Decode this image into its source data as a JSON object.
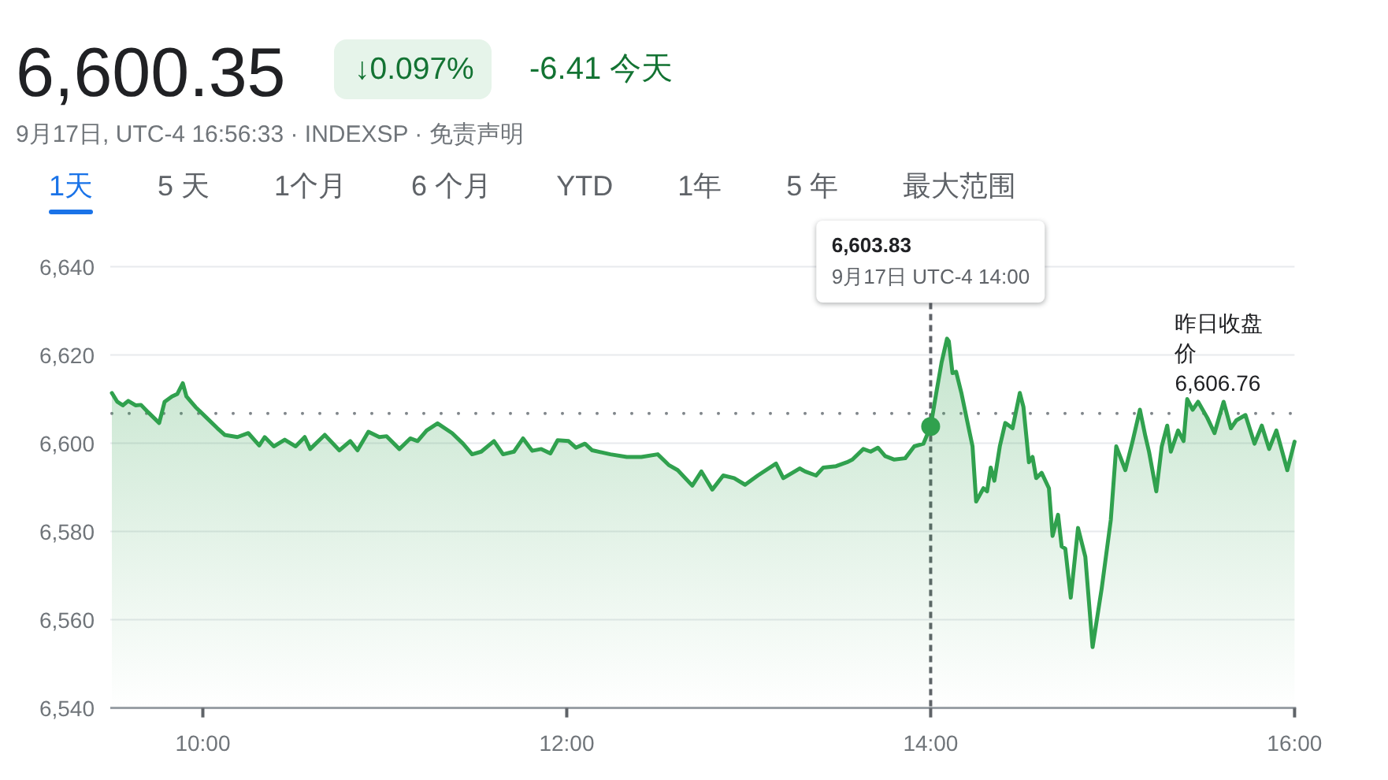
{
  "chart_data": {
    "type": "area",
    "title": "6,600.35",
    "subtitle": "9月17日, UTC-4 16:56:33 · INDEXSP · 免责声明",
    "xlim": [
      9.5,
      16
    ],
    "xticks": [
      {
        "value": 10,
        "label": "10:00"
      },
      {
        "value": 12,
        "label": "12:00"
      },
      {
        "value": 14,
        "label": "14:00"
      },
      {
        "value": 16,
        "label": "16:00"
      }
    ],
    "ylim": [
      6540,
      6640
    ],
    "yticks": [
      {
        "value": 6540,
        "label": "6,540"
      },
      {
        "value": 6560,
        "label": "6,560"
      },
      {
        "value": 6580,
        "label": "6,580"
      },
      {
        "value": 6600,
        "label": "6,600"
      },
      {
        "value": 6620,
        "label": "6,620"
      },
      {
        "value": 6640,
        "label": "6,640"
      }
    ],
    "grid": "y",
    "series": [
      {
        "color": "#30a14e",
        "x": [
          9.5,
          9.53,
          9.56,
          9.59,
          9.63,
          9.66,
          9.7,
          9.76,
          9.79,
          9.83,
          9.86,
          9.89,
          9.91,
          9.96,
          10.02,
          10.08,
          10.12,
          10.19,
          10.25,
          10.31,
          10.34,
          10.39,
          10.45,
          10.51,
          10.56,
          10.59,
          10.67,
          10.75,
          10.81,
          10.85,
          10.91,
          10.97,
          11.01,
          11.08,
          11.14,
          11.18,
          11.23,
          11.29,
          11.37,
          11.43,
          11.48,
          11.53,
          11.6,
          11.65,
          11.71,
          11.76,
          11.81,
          11.86,
          11.91,
          11.95,
          12.01,
          12.05,
          12.1,
          12.14,
          12.24,
          12.33,
          12.41,
          12.5,
          12.56,
          12.61,
          12.69,
          12.74,
          12.8,
          12.86,
          12.92,
          12.98,
          13.05,
          13.15,
          13.19,
          13.24,
          13.28,
          13.31,
          13.37,
          13.41,
          13.48,
          13.54,
          13.57,
          13.63,
          13.67,
          13.71,
          13.75,
          13.8,
          13.86,
          13.91,
          13.96,
          14,
          14.03,
          14.06,
          14.09,
          14.1,
          14.12,
          14.14,
          14.17,
          14.2,
          14.23,
          14.25,
          14.29,
          14.31,
          14.33,
          14.35,
          14.38,
          14.41,
          14.45,
          14.49,
          14.51,
          14.54,
          14.56,
          14.58,
          14.61,
          14.65,
          14.67,
          14.7,
          14.72,
          14.74,
          14.77,
          14.81,
          14.85,
          14.89,
          14.94,
          14.99,
          15.02,
          15.07,
          15.11,
          15.15,
          15.18,
          15.2,
          15.24,
          15.27,
          15.3,
          15.32,
          15.36,
          15.39,
          15.41,
          15.44,
          15.47,
          15.52,
          15.56,
          15.61,
          15.65,
          15.68,
          15.73,
          15.78,
          15.82,
          15.86,
          15.9,
          15.96,
          16
        ],
        "values": [
          6611.4,
          6609.4,
          6608.6,
          6609.6,
          6608.6,
          6608.7,
          6607,
          6604.6,
          6609.4,
          6610.6,
          6611.2,
          6613.6,
          6610.6,
          6608.2,
          6605.8,
          6603.4,
          6601.9,
          6601.4,
          6602.3,
          6599.5,
          6601.4,
          6599.3,
          6600.8,
          6599.3,
          6601.4,
          6598.7,
          6601.9,
          6598.4,
          6600.5,
          6598.4,
          6602.6,
          6601.4,
          6601.6,
          6598.7,
          6601.1,
          6600.5,
          6602.9,
          6604.5,
          6602.3,
          6599.9,
          6597.5,
          6598.1,
          6600.5,
          6597.5,
          6598.1,
          6601.1,
          6598.3,
          6598.7,
          6597.7,
          6600.7,
          6600.5,
          6599,
          6599.9,
          6598.4,
          6597.5,
          6596.9,
          6596.9,
          6597.5,
          6595.1,
          6593.9,
          6590.4,
          6593.6,
          6589.5,
          6592.7,
          6592.1,
          6590.6,
          6592.7,
          6595.4,
          6592.1,
          6593.3,
          6594.3,
          6593.6,
          6592.7,
          6594.5,
          6594.8,
          6595.7,
          6596.3,
          6598.7,
          6598.1,
          6599,
          6597.1,
          6596.3,
          6596.6,
          6599.3,
          6599.9,
          6603.83,
          6611.2,
          6618.3,
          6623.7,
          6623.1,
          6615.9,
          6616.2,
          6611.2,
          6605.2,
          6599.3,
          6586.8,
          6589.8,
          6589.1,
          6594.5,
          6591.5,
          6599.3,
          6604.6,
          6603.4,
          6611.4,
          6608.2,
          6595.7,
          6596.9,
          6592.1,
          6593.3,
          6589.8,
          6579,
          6583.8,
          6576.6,
          6576.1,
          6565,
          6580.8,
          6574.3,
          6553.8,
          6567.1,
          6582.6,
          6599.3,
          6593.9,
          6600.5,
          6607.6,
          6601.6,
          6598.1,
          6589.1,
          6599.3,
          6604,
          6598.1,
          6602.9,
          6600.5,
          6610,
          6607.6,
          6609.4,
          6605.8,
          6602.3,
          6609.4,
          6603.4,
          6605.2,
          6606.4,
          6599.9,
          6604,
          6598.7,
          6602.9,
          6593.9,
          6600.35
        ]
      },
      {
        "type": "scatter",
        "color": "#30a14e",
        "x": [
          14
        ],
        "values": [
          6603.83
        ]
      }
    ],
    "ref_lines": [
      {
        "axis": "y",
        "value": 6606.76,
        "label": "昨日收盘价 6,606.76",
        "color": "#80868b",
        "line_style": "dotted"
      },
      {
        "axis": "x",
        "value": 14,
        "label": "6,603.83\n9月17日 UTC-4 14:00",
        "color": "#5f6368",
        "line_style": "dashed"
      }
    ],
    "annotations": [
      "↓0.097%",
      "-6.41 今天",
      "1天",
      "5 天",
      "1个月",
      "6 个月",
      "YTD",
      "1年",
      "5 年",
      "最大范围"
    ]
  }
}
